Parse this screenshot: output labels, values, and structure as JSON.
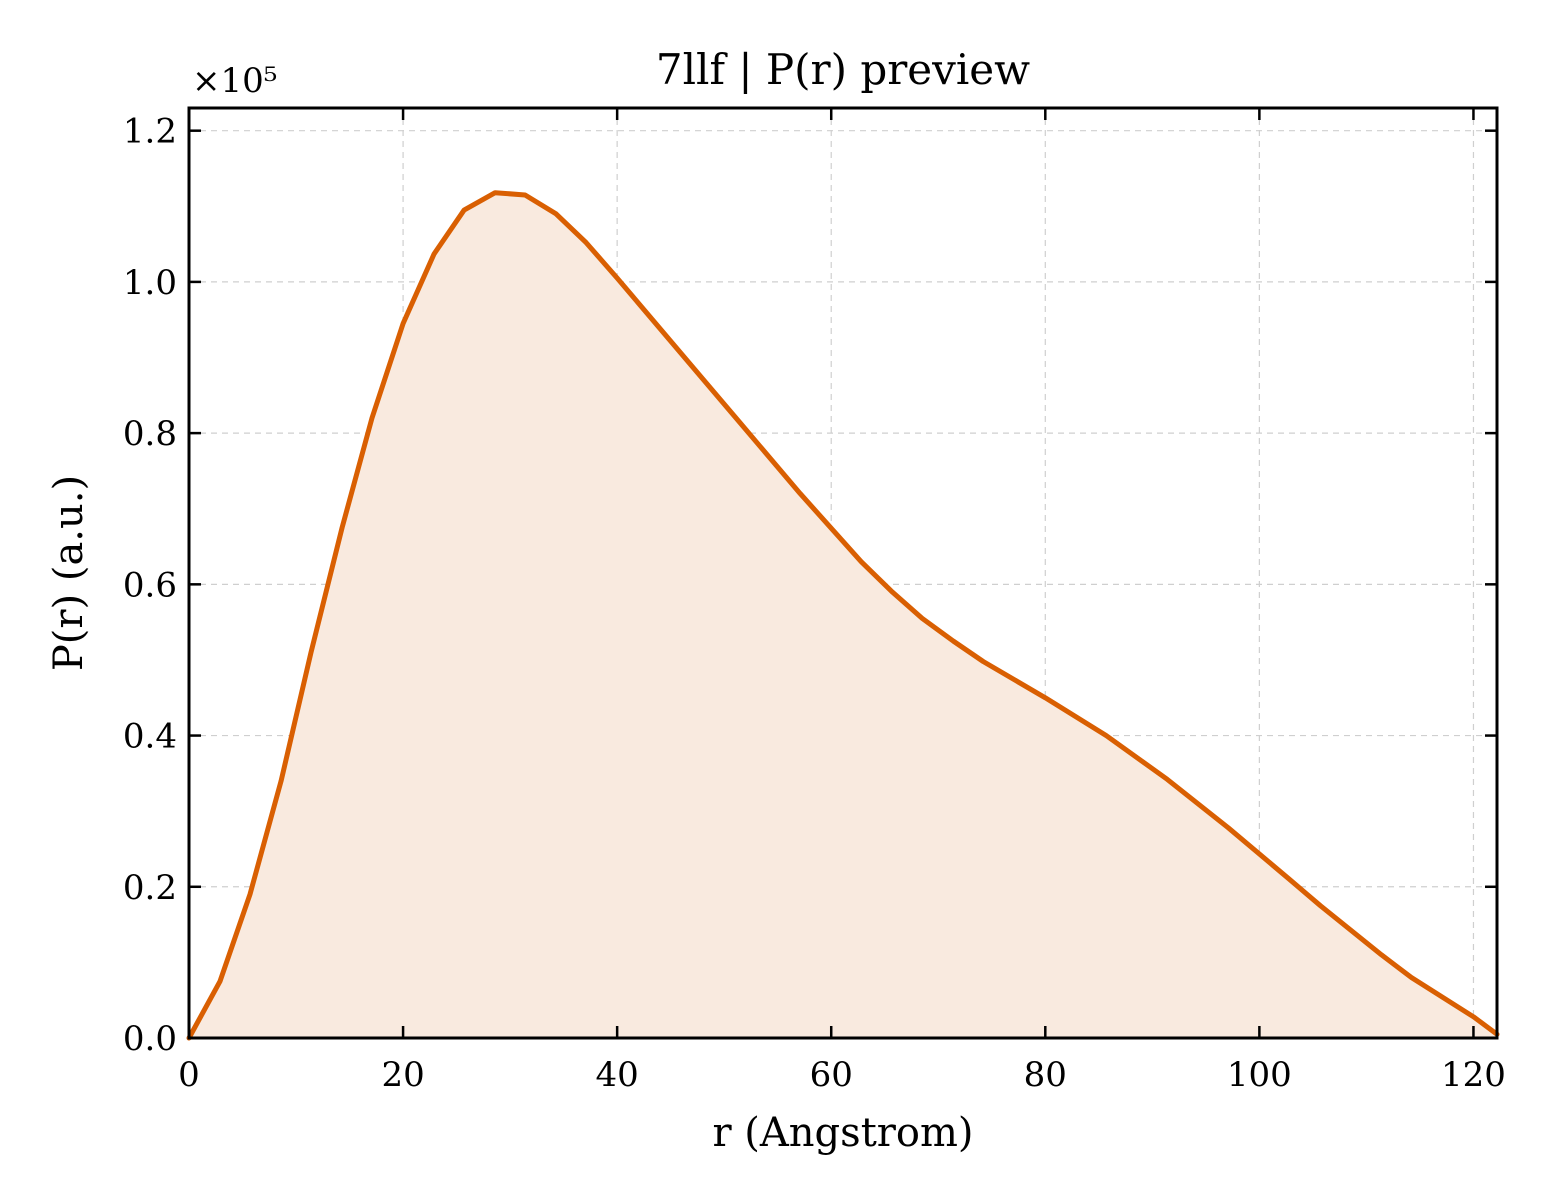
{
  "chart_data": {
    "type": "area",
    "title": "7llf | P(r) preview",
    "xlabel": "r (Angstrom)",
    "ylabel": "P(r) (a.u.)",
    "y_offset_label": "×10⁵",
    "y_scale": 100000,
    "xlim": [
      0,
      122.2
    ],
    "ylim": [
      0,
      1.23
    ],
    "x_ticks": [
      0,
      20,
      40,
      60,
      80,
      100,
      120
    ],
    "y_ticks": [
      0.0,
      0.2,
      0.4,
      0.6,
      0.8,
      1.0,
      1.2
    ],
    "x_tick_labels": [
      "0",
      "20",
      "40",
      "60",
      "80",
      "100",
      "120"
    ],
    "y_tick_labels": [
      "0.0",
      "0.2",
      "0.4",
      "0.6",
      "0.8",
      "1.0",
      "1.2"
    ],
    "grid": true,
    "line_color": "#d95f02",
    "fill_color": "#f9eadf",
    "series": [
      {
        "x": [
          0,
          2.9,
          5.7,
          8.6,
          11.4,
          14.3,
          17.1,
          20.0,
          22.9,
          25.7,
          28.6,
          31.4,
          34.3,
          37.1,
          40.0,
          45.7,
          51.4,
          57.1,
          62.8,
          65.7,
          68.5,
          71.4,
          74.2,
          80.0,
          85.7,
          91.4,
          97.1,
          102.8,
          105.7,
          111.4,
          114.2,
          120.0,
          122.2
        ],
        "values": [
          0.0,
          0.075,
          0.19,
          0.34,
          0.51,
          0.675,
          0.82,
          0.945,
          1.037,
          1.095,
          1.118,
          1.115,
          1.09,
          1.052,
          1.005,
          0.91,
          0.815,
          0.72,
          0.63,
          0.59,
          0.555,
          0.525,
          0.498,
          0.45,
          0.4,
          0.342,
          0.278,
          0.21,
          0.175,
          0.11,
          0.08,
          0.028,
          0.005
        ]
      }
    ]
  }
}
